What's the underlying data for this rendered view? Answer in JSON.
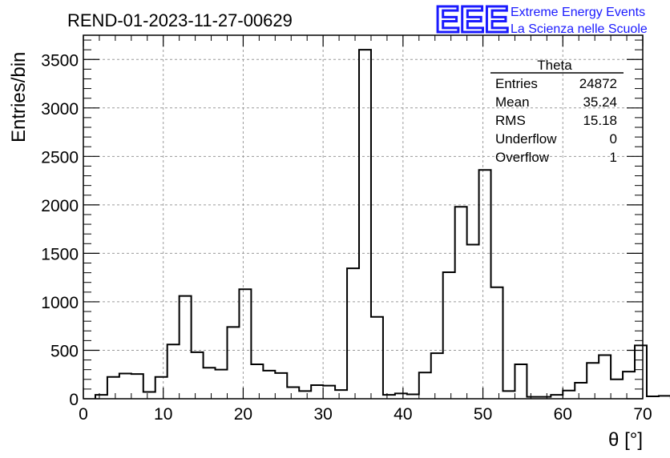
{
  "chart_data": {
    "type": "bar",
    "title": "REND-01-2023-11-27-00629",
    "xlabel": "θ [°]",
    "ylabel": "Entries/bin",
    "xlim": [
      0,
      70
    ],
    "ylim": [
      0,
      3750
    ],
    "xticks": [
      "0",
      "10",
      "20",
      "30",
      "40",
      "50",
      "60",
      "70"
    ],
    "yticks": [
      "0",
      "500",
      "1000",
      "1500",
      "2000",
      "2500",
      "3000",
      "3500"
    ],
    "grid": true,
    "bin_width": 1.5,
    "bin_start": 1.5,
    "values": [
      40,
      225,
      260,
      255,
      70,
      225,
      560,
      1060,
      480,
      320,
      300,
      740,
      1130,
      355,
      290,
      265,
      120,
      80,
      140,
      135,
      90,
      1345,
      3600,
      845,
      40,
      55,
      45,
      270,
      470,
      1305,
      1980,
      1590,
      2360,
      1150,
      80,
      355,
      20,
      20,
      40,
      85,
      165,
      370,
      450,
      200,
      280,
      550,
      25,
      30
    ]
  },
  "stats": {
    "name": "Theta",
    "rows": [
      {
        "label": "Entries",
        "value": "24872"
      },
      {
        "label": "Mean",
        "value": "35.24"
      },
      {
        "label": "RMS",
        "value": "15.18"
      },
      {
        "label": "Underflow",
        "value": "0"
      },
      {
        "label": "Overflow",
        "value": "1"
      }
    ]
  },
  "logo": {
    "mark": "EEE",
    "line1": "Extreme Energy Events",
    "line2": "La Scienza nelle Scuole",
    "color": "#1a1aff"
  }
}
